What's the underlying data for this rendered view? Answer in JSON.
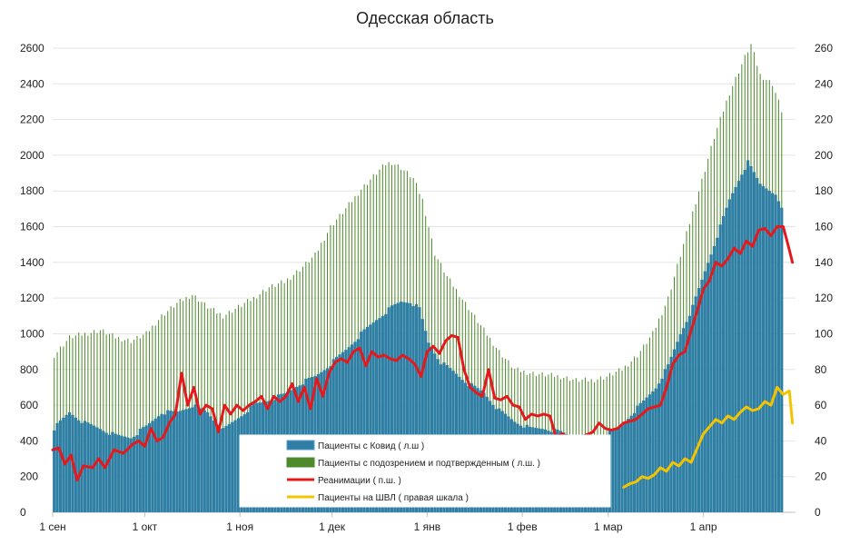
{
  "chart_data": {
    "type": "bar",
    "title": "Одесская область",
    "y_left": {
      "min": 0,
      "max": 2600,
      "ticks": [
        "0",
        "200",
        "400",
        "600",
        "800",
        "1000",
        "1200",
        "1400",
        "1600",
        "1800",
        "2000",
        "2200",
        "2400",
        "2600"
      ]
    },
    "y_right": {
      "min": 0,
      "max": 260,
      "ticks": [
        "0",
        "20",
        "40",
        "60",
        "80",
        "100",
        "120",
        "140",
        "160",
        "180",
        "200",
        "220",
        "240",
        "260"
      ]
    },
    "x_ticks": [
      {
        "day": 0,
        "label": "1 сен"
      },
      {
        "day": 30,
        "label": "1 окт"
      },
      {
        "day": 61,
        "label": "1 ноя"
      },
      {
        "day": 91,
        "label": "1 дек"
      },
      {
        "day": 122,
        "label": "1 янв"
      },
      {
        "day": 153,
        "label": "1 фев"
      },
      {
        "day": 181,
        "label": "1 мар"
      },
      {
        "day": 212,
        "label": "1 апр"
      }
    ],
    "grid": true,
    "legend_position": "bottom-center",
    "series": [
      {
        "name": "Пациенты с Ковид ( л.ш )",
        "axis": "left",
        "kind": "bar",
        "color": "#2e7fa3",
        "keypoints": [
          [
            0,
            470
          ],
          [
            5,
            560
          ],
          [
            10,
            500
          ],
          [
            15,
            470
          ],
          [
            20,
            430
          ],
          [
            25,
            420
          ],
          [
            30,
            480
          ],
          [
            35,
            560
          ],
          [
            40,
            560
          ],
          [
            45,
            600
          ],
          [
            50,
            560
          ],
          [
            55,
            460
          ],
          [
            60,
            530
          ],
          [
            65,
            600
          ],
          [
            70,
            630
          ],
          [
            75,
            660
          ],
          [
            80,
            720
          ],
          [
            85,
            760
          ],
          [
            90,
            830
          ],
          [
            95,
            910
          ],
          [
            100,
            1000
          ],
          [
            105,
            1080
          ],
          [
            110,
            1150
          ],
          [
            113,
            1180
          ],
          [
            116,
            1180
          ],
          [
            119,
            1140
          ],
          [
            122,
            950
          ],
          [
            126,
            840
          ],
          [
            130,
            790
          ],
          [
            135,
            720
          ],
          [
            140,
            670
          ],
          [
            145,
            570
          ],
          [
            150,
            510
          ],
          [
            155,
            470
          ],
          [
            160,
            470
          ],
          [
            165,
            450
          ],
          [
            170,
            420
          ],
          [
            175,
            430
          ],
          [
            180,
            440
          ],
          [
            184,
            470
          ],
          [
            188,
            550
          ],
          [
            192,
            620
          ],
          [
            196,
            700
          ],
          [
            200,
            820
          ],
          [
            204,
            1000
          ],
          [
            208,
            1150
          ],
          [
            212,
            1350
          ],
          [
            216,
            1550
          ],
          [
            220,
            1750
          ],
          [
            224,
            1900
          ],
          [
            226,
            1960
          ],
          [
            230,
            1840
          ],
          [
            234,
            1800
          ],
          [
            237,
            1700
          ]
        ]
      },
      {
        "name": "Пациенты с подозрением и подтвержденным ( л.ш. )",
        "axis": "left",
        "kind": "bar",
        "color": "#4e8a2c",
        "keypoints": [
          [
            0,
            880
          ],
          [
            5,
            980
          ],
          [
            10,
            1000
          ],
          [
            15,
            1020
          ],
          [
            20,
            980
          ],
          [
            25,
            960
          ],
          [
            30,
            1000
          ],
          [
            35,
            1100
          ],
          [
            40,
            1170
          ],
          [
            45,
            1220
          ],
          [
            50,
            1150
          ],
          [
            55,
            1100
          ],
          [
            60,
            1150
          ],
          [
            65,
            1200
          ],
          [
            70,
            1260
          ],
          [
            75,
            1290
          ],
          [
            80,
            1360
          ],
          [
            85,
            1440
          ],
          [
            90,
            1600
          ],
          [
            95,
            1700
          ],
          [
            100,
            1810
          ],
          [
            105,
            1900
          ],
          [
            108,
            1950
          ],
          [
            110,
            1960
          ],
          [
            113,
            1930
          ],
          [
            117,
            1870
          ],
          [
            120,
            1750
          ],
          [
            124,
            1450
          ],
          [
            128,
            1320
          ],
          [
            132,
            1220
          ],
          [
            136,
            1120
          ],
          [
            140,
            1020
          ],
          [
            145,
            900
          ],
          [
            150,
            800
          ],
          [
            155,
            780
          ],
          [
            160,
            770
          ],
          [
            165,
            760
          ],
          [
            170,
            740
          ],
          [
            175,
            740
          ],
          [
            180,
            760
          ],
          [
            185,
            800
          ],
          [
            190,
            880
          ],
          [
            195,
            1000
          ],
          [
            200,
            1200
          ],
          [
            205,
            1500
          ],
          [
            210,
            1800
          ],
          [
            215,
            2100
          ],
          [
            220,
            2350
          ],
          [
            225,
            2550
          ],
          [
            227,
            2620
          ],
          [
            230,
            2450
          ],
          [
            234,
            2400
          ],
          [
            237,
            2250
          ]
        ]
      },
      {
        "name": "Реанимации ( п.ш. )",
        "axis": "right",
        "kind": "line",
        "color": "#e3191c",
        "keypoints": [
          [
            0,
            35
          ],
          [
            2,
            36
          ],
          [
            4,
            27
          ],
          [
            6,
            32
          ],
          [
            8,
            18
          ],
          [
            10,
            26
          ],
          [
            13,
            25
          ],
          [
            15,
            30
          ],
          [
            17,
            25
          ],
          [
            20,
            35
          ],
          [
            23,
            33
          ],
          [
            26,
            38
          ],
          [
            28,
            40
          ],
          [
            30,
            37
          ],
          [
            32,
            47
          ],
          [
            34,
            40
          ],
          [
            36,
            42
          ],
          [
            38,
            50
          ],
          [
            40,
            55
          ],
          [
            42,
            78
          ],
          [
            44,
            60
          ],
          [
            46,
            70
          ],
          [
            48,
            55
          ],
          [
            50,
            60
          ],
          [
            52,
            58
          ],
          [
            54,
            45
          ],
          [
            56,
            60
          ],
          [
            58,
            55
          ],
          [
            60,
            60
          ],
          [
            62,
            57
          ],
          [
            64,
            60
          ],
          [
            66,
            62
          ],
          [
            68,
            65
          ],
          [
            70,
            58
          ],
          [
            72,
            65
          ],
          [
            74,
            62
          ],
          [
            76,
            65
          ],
          [
            78,
            72
          ],
          [
            80,
            62
          ],
          [
            82,
            70
          ],
          [
            84,
            58
          ],
          [
            86,
            75
          ],
          [
            88,
            65
          ],
          [
            90,
            78
          ],
          [
            92,
            84
          ],
          [
            94,
            86
          ],
          [
            96,
            84
          ],
          [
            98,
            90
          ],
          [
            100,
            92
          ],
          [
            102,
            82
          ],
          [
            104,
            90
          ],
          [
            106,
            87
          ],
          [
            108,
            88
          ],
          [
            110,
            86
          ],
          [
            112,
            85
          ],
          [
            114,
            88
          ],
          [
            116,
            86
          ],
          [
            118,
            83
          ],
          [
            120,
            76
          ],
          [
            122,
            90
          ],
          [
            124,
            93
          ],
          [
            126,
            89
          ],
          [
            128,
            96
          ],
          [
            130,
            99
          ],
          [
            132,
            98
          ],
          [
            134,
            80
          ],
          [
            136,
            70
          ],
          [
            138,
            67
          ],
          [
            140,
            65
          ],
          [
            142,
            80
          ],
          [
            144,
            64
          ],
          [
            146,
            63
          ],
          [
            148,
            65
          ],
          [
            150,
            60
          ],
          [
            152,
            59
          ],
          [
            154,
            52
          ],
          [
            156,
            55
          ],
          [
            158,
            54
          ],
          [
            160,
            55
          ],
          [
            162,
            54
          ],
          [
            164,
            42
          ],
          [
            166,
            44
          ],
          [
            168,
            42
          ],
          [
            172,
            42
          ],
          [
            176,
            45
          ],
          [
            178,
            50
          ],
          [
            180,
            47
          ],
          [
            182,
            46
          ],
          [
            184,
            47
          ],
          [
            186,
            50
          ],
          [
            190,
            52
          ],
          [
            194,
            58
          ],
          [
            198,
            60
          ],
          [
            200,
            70
          ],
          [
            202,
            83
          ],
          [
            204,
            88
          ],
          [
            206,
            90
          ],
          [
            208,
            102
          ],
          [
            210,
            113
          ],
          [
            212,
            125
          ],
          [
            214,
            130
          ],
          [
            216,
            140
          ],
          [
            218,
            138
          ],
          [
            220,
            142
          ],
          [
            222,
            148
          ],
          [
            224,
            145
          ],
          [
            226,
            152
          ],
          [
            228,
            149
          ],
          [
            230,
            158
          ],
          [
            232,
            159
          ],
          [
            234,
            155
          ],
          [
            236,
            160
          ],
          [
            238,
            160
          ],
          [
            240,
            147
          ],
          [
            241,
            140
          ]
        ]
      },
      {
        "name": "Пациенты на ШВЛ ( правая шкала )",
        "axis": "right",
        "kind": "line",
        "color": "#f5c400",
        "keypoints": [
          [
            186,
            14
          ],
          [
            188,
            16
          ],
          [
            190,
            17
          ],
          [
            192,
            20
          ],
          [
            194,
            19
          ],
          [
            196,
            21
          ],
          [
            198,
            25
          ],
          [
            200,
            23
          ],
          [
            202,
            28
          ],
          [
            204,
            26
          ],
          [
            206,
            30
          ],
          [
            208,
            28
          ],
          [
            210,
            36
          ],
          [
            212,
            44
          ],
          [
            214,
            48
          ],
          [
            216,
            52
          ],
          [
            218,
            50
          ],
          [
            220,
            54
          ],
          [
            222,
            52
          ],
          [
            224,
            56
          ],
          [
            226,
            59
          ],
          [
            228,
            57
          ],
          [
            230,
            58
          ],
          [
            232,
            62
          ],
          [
            234,
            60
          ],
          [
            236,
            70
          ],
          [
            238,
            66
          ],
          [
            240,
            68
          ],
          [
            241,
            50
          ]
        ]
      }
    ]
  }
}
